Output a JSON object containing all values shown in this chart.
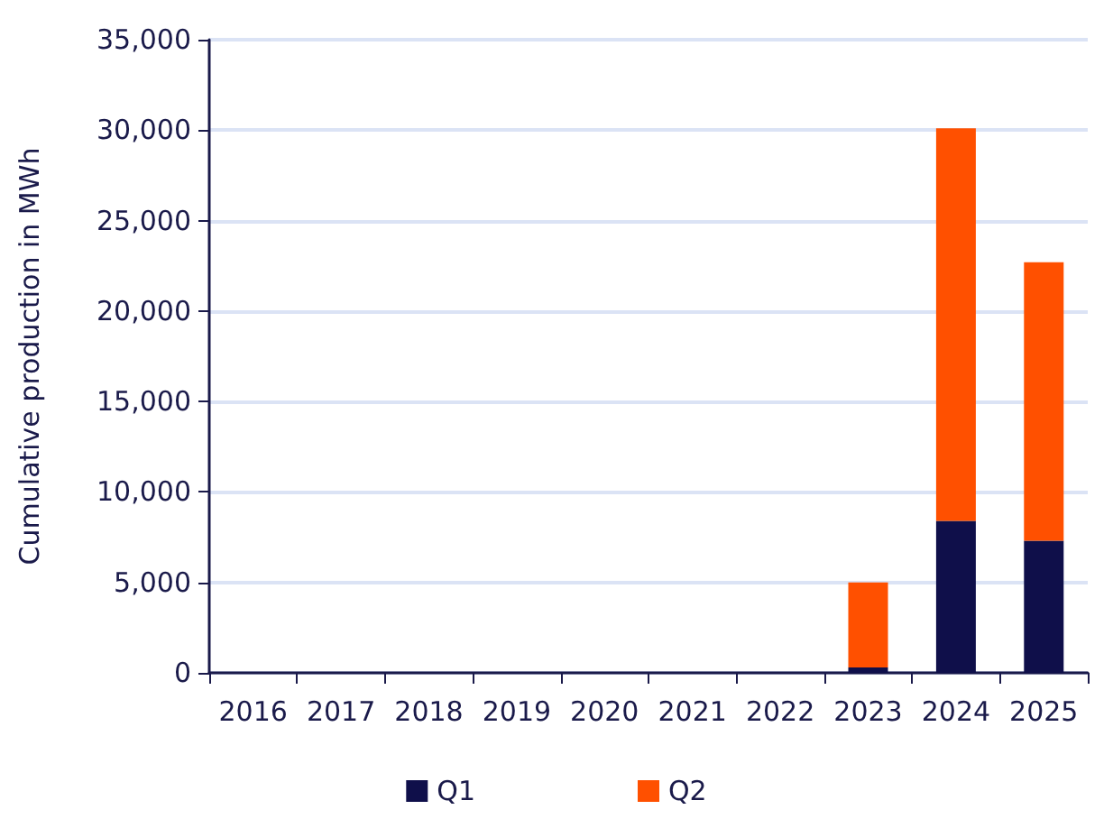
{
  "chart_data": {
    "type": "bar",
    "stacked": true,
    "ylabel": "Cumulative production in MWh",
    "categories": [
      "2016",
      "2017",
      "2018",
      "2019",
      "2020",
      "2021",
      "2022",
      "2023",
      "2024",
      "2025"
    ],
    "series": [
      {
        "name": "Q1",
        "color": "#0f0f4a",
        "values": [
          0,
          0,
          0,
          0,
          0,
          0,
          0,
          300,
          8400,
          7300
        ]
      },
      {
        "name": "Q2",
        "color": "#ff5000",
        "values": [
          0,
          0,
          0,
          0,
          0,
          0,
          0,
          4700,
          21700,
          15400
        ]
      }
    ],
    "ylim": [
      0,
      35000
    ],
    "yticks": [
      0,
      {
        "value": 5000,
        "label": "5,000"
      },
      {
        "value": 10000,
        "label": "10,000"
      },
      {
        "value": 15000,
        "label": "15,000"
      },
      {
        "value": 20000,
        "label": "20,000"
      },
      {
        "value": 25000,
        "label": "25,000"
      },
      {
        "value": 30000,
        "label": "30,000"
      },
      {
        "value": 35000,
        "label": "35,000"
      }
    ],
    "grid": "y",
    "legend": "bottom"
  }
}
